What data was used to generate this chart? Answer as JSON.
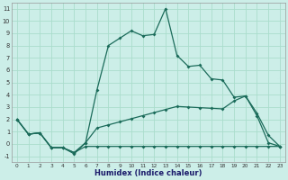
{
  "xlabel": "Humidex (Indice chaleur)",
  "background_color": "#cceee8",
  "grid_color": "#aaddcc",
  "line_color": "#1b6b5a",
  "xlim": [
    -0.5,
    23.5
  ],
  "ylim": [
    -1.5,
    11.5
  ],
  "xticks": [
    0,
    1,
    2,
    3,
    4,
    5,
    6,
    7,
    8,
    9,
    10,
    11,
    12,
    13,
    14,
    15,
    16,
    17,
    18,
    19,
    20,
    21,
    22,
    23
  ],
  "yticks": [
    -1,
    0,
    1,
    2,
    3,
    4,
    5,
    6,
    7,
    8,
    9,
    10,
    11
  ],
  "line1_y": [
    2.0,
    0.8,
    0.9,
    -0.3,
    -0.3,
    -0.8,
    0.1,
    4.4,
    8.0,
    8.6,
    9.2,
    8.8,
    8.9,
    11.0,
    7.2,
    6.3,
    6.4,
    5.3,
    5.2,
    3.8,
    3.9,
    2.5,
    0.7,
    -0.2
  ],
  "line2_y": [
    2.0,
    0.8,
    0.9,
    -0.3,
    -0.3,
    -0.7,
    0.1,
    1.3,
    1.55,
    1.8,
    2.05,
    2.3,
    2.55,
    2.8,
    3.05,
    3.0,
    2.95,
    2.9,
    2.85,
    3.5,
    3.9,
    2.3,
    0.1,
    -0.2
  ],
  "line3_y": [
    2.0,
    0.8,
    0.9,
    -0.3,
    -0.3,
    -0.7,
    -0.2,
    -0.2,
    -0.2,
    -0.2,
    -0.2,
    -0.2,
    -0.2,
    -0.2,
    -0.2,
    -0.2,
    -0.2,
    -0.2,
    -0.2,
    -0.2,
    -0.2,
    -0.2,
    -0.2,
    -0.2
  ],
  "markersize": 2,
  "linewidth": 0.9
}
